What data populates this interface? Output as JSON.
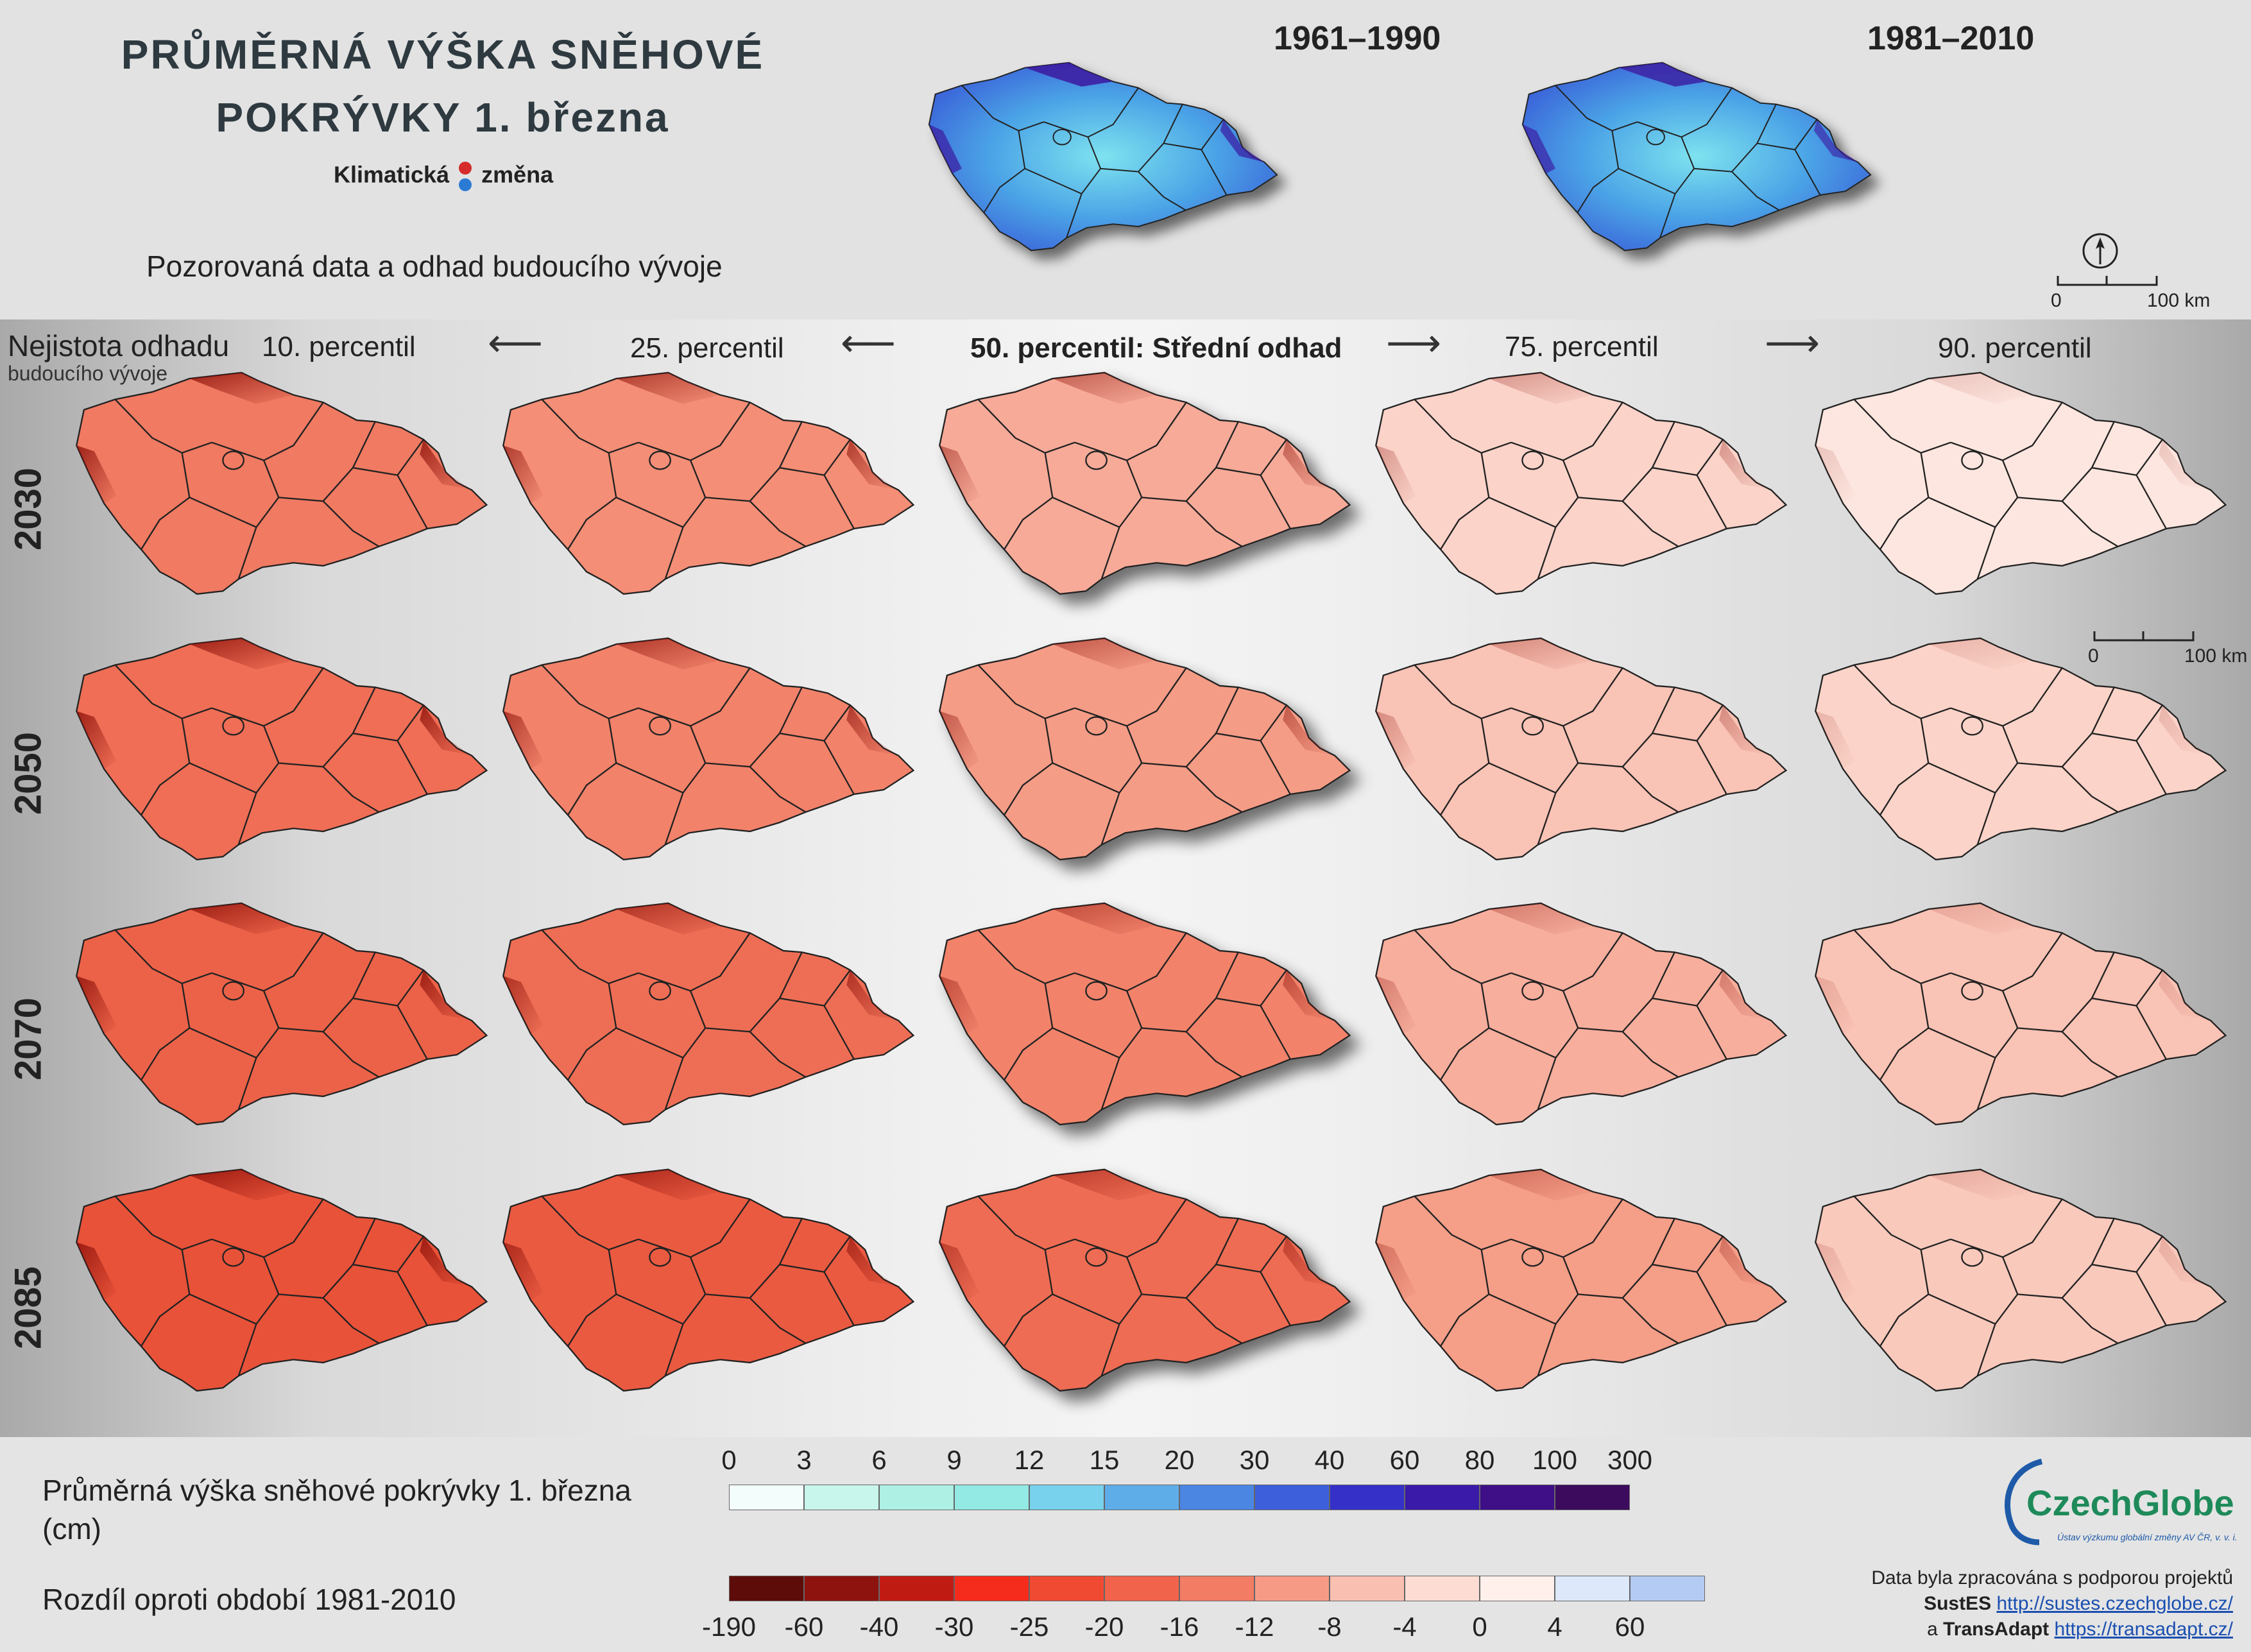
{
  "title": {
    "line1": "PRŮMĚRNÁ VÝŠKA SNĚHOVÉ",
    "line2": "POKRÝVKY 1. března"
  },
  "brand": {
    "left": "Klimatická",
    "right": "změna"
  },
  "subtitle": "Pozorovaná data a odhad budoucího vývoje",
  "observed": {
    "periods": [
      "1961–1990",
      "1981–2010"
    ],
    "scalebar": {
      "start": "0",
      "end": "100 km"
    }
  },
  "uncertainty_label": {
    "line1": "Nejistota odhadu",
    "line2": "budoucího vývoje"
  },
  "columns": [
    "10. percentil",
    "25. percentil",
    "50. percentil: Střední odhad",
    "75. percentil",
    "90. percentil"
  ],
  "rows": [
    "2030",
    "2050",
    "2070",
    "2085"
  ],
  "grid_scalebar": {
    "start": "0",
    "end": "100 km"
  },
  "map_colors": [
    [
      "#f07a62",
      "#f48e76",
      "#f7aa98",
      "#fbd3c9",
      "#fde6df"
    ],
    [
      "#ef6e55",
      "#f2826a",
      "#f59c86",
      "#f9c3b5",
      "#fbd3c8"
    ],
    [
      "#ec6248",
      "#ee6e55",
      "#f2836b",
      "#f7ae9d",
      "#f9c3b5"
    ],
    [
      "#e85239",
      "#ea5a41",
      "#ee6c53",
      "#f59e88",
      "#f9c9bc"
    ]
  ],
  "legend_snow": {
    "label_line1": "Průměrná výška sněhové pokrývky 1. března",
    "label_line2": "(cm)",
    "ticks": [
      "0",
      "3",
      "6",
      "9",
      "12",
      "15",
      "20",
      "30",
      "40",
      "60",
      "80",
      "100",
      "300"
    ],
    "colors": [
      "#f3fdfb",
      "#c9f6ec",
      "#aef0e4",
      "#93e9e3",
      "#78d2ee",
      "#5eade8",
      "#4b86e3",
      "#3d5fdc",
      "#3531c8",
      "#3a1aa9",
      "#3e0f87",
      "#3c0b5e"
    ]
  },
  "legend_diff": {
    "label": "Rozdíl oproti období 1981-2010",
    "ticks": [
      "-190",
      "-60",
      "-40",
      "-30",
      "-25",
      "-20",
      "-16",
      "-12",
      "-8",
      "-4",
      "0",
      "4",
      "60"
    ],
    "colors": [
      "#5e0c09",
      "#8e120d",
      "#c01b13",
      "#f52b1c",
      "#f04a33",
      "#f1634b",
      "#f37c65",
      "#f69a86",
      "#f9bfb1",
      "#fcdcd3",
      "#fff0ec",
      "#dde9fb",
      "#b4ccf3"
    ]
  },
  "czechglobe": {
    "name": "CzechGlobe",
    "tagline": "Ústav výzkumu globální změny AV ČR, v. v. i."
  },
  "credits": {
    "line1": "Data byla zpracována s podporou projektů",
    "p1_name": "SustES",
    "p1_url": "http://sustes.czechglobe.cz/",
    "and": "a",
    "p2_name": "TransAdapt",
    "p2_url": "https://transadapt.cz/"
  }
}
